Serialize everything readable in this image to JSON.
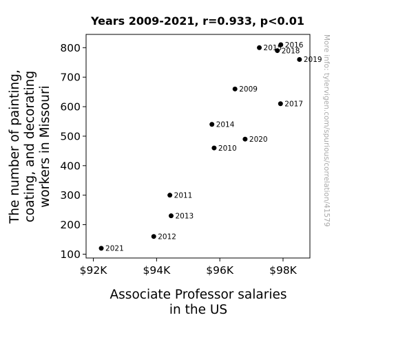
{
  "chart_data": {
    "type": "scatter",
    "title": "Years 2009-2021, r=0.933, p<0.01",
    "xlabel": [
      "Associate Professor salaries",
      "in the US"
    ],
    "ylabel": [
      "The number of painting,",
      "coating, and decorating",
      "workers in Missouri"
    ],
    "x_ticks": [
      {
        "value": 92000,
        "label": "$92K"
      },
      {
        "value": 94000,
        "label": "$94K"
      },
      {
        "value": 96000,
        "label": "$96K"
      },
      {
        "value": 98000,
        "label": "$98K"
      }
    ],
    "y_ticks": [
      100,
      200,
      300,
      400,
      500,
      600,
      700,
      800
    ],
    "xlim": [
      91770,
      98850
    ],
    "ylim": [
      87,
      845
    ],
    "grid": false,
    "point_color": "#000000",
    "points": [
      {
        "label": "2009",
        "x": 96480,
        "y": 660
      },
      {
        "label": "2010",
        "x": 95820,
        "y": 460
      },
      {
        "label": "2011",
        "x": 94420,
        "y": 300
      },
      {
        "label": "2012",
        "x": 93910,
        "y": 160
      },
      {
        "label": "2013",
        "x": 94460,
        "y": 230
      },
      {
        "label": "2014",
        "x": 95750,
        "y": 540
      },
      {
        "label": "2015",
        "x": 97250,
        "y": 800
      },
      {
        "label": "2016",
        "x": 97930,
        "y": 810
      },
      {
        "label": "2017",
        "x": 97920,
        "y": 610
      },
      {
        "label": "2018",
        "x": 97820,
        "y": 790
      },
      {
        "label": "2019",
        "x": 98520,
        "y": 760
      },
      {
        "label": "2020",
        "x": 96800,
        "y": 490
      },
      {
        "label": "2021",
        "x": 92250,
        "y": 120
      }
    ]
  },
  "watermark": "More info: tylervigen.com/spurious/correlation/41579"
}
